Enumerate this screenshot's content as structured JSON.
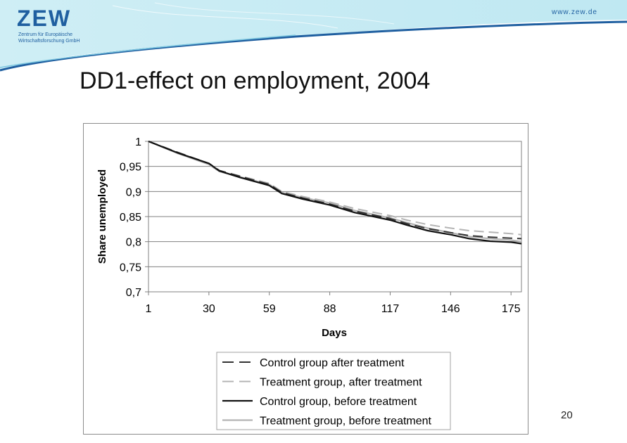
{
  "header": {
    "logo": "ZEW",
    "logo_subtitle_line1": "Zentrum für Europäische",
    "logo_subtitle_line2": "Wirtschaftsforschung GmbH",
    "url": "www.zew.de"
  },
  "slide": {
    "title": "DD1-effect on employment, 2004",
    "page_number": "20"
  },
  "colors": {
    "brand_blue": "#1f5fa0",
    "control_after": "#333333",
    "treatment_after": "#b4b4b4",
    "control_before": "#111111",
    "treatment_before": "#b4b4b4"
  },
  "chart_data": {
    "type": "line",
    "title": "",
    "xlabel": "Days",
    "ylabel": "Share unemployed",
    "xlim": [
      1,
      180
    ],
    "ylim": [
      0.7,
      1
    ],
    "x_ticks": [
      1,
      30,
      59,
      88,
      117,
      146,
      175
    ],
    "y_ticks": [
      1,
      0.95,
      0.9,
      0.85,
      0.8,
      0.75,
      0.7
    ],
    "y_tick_labels": [
      "1",
      "0,95",
      "0,9",
      "0,85",
      "0,8",
      "0,75",
      "0,7"
    ],
    "grid": "horizontal",
    "legend_position": "bottom",
    "x": [
      1,
      15,
      30,
      35,
      45,
      59,
      65,
      75,
      88,
      100,
      117,
      125,
      135,
      146,
      155,
      165,
      175,
      180
    ],
    "series": [
      {
        "name": "Control group after treatment",
        "style": "dashed",
        "color": "#333333",
        "values": [
          1.0,
          0.978,
          0.956,
          0.942,
          0.93,
          0.914,
          0.898,
          0.887,
          0.875,
          0.861,
          0.846,
          0.836,
          0.826,
          0.818,
          0.812,
          0.809,
          0.807,
          0.806
        ]
      },
      {
        "name": "Treatment group, after treatment",
        "style": "dashed",
        "color": "#b4b4b4",
        "values": [
          1.0,
          0.978,
          0.955,
          0.941,
          0.931,
          0.916,
          0.9,
          0.89,
          0.879,
          0.866,
          0.852,
          0.843,
          0.834,
          0.827,
          0.822,
          0.819,
          0.816,
          0.814
        ]
      },
      {
        "name": "Control group, before treatment",
        "style": "solid",
        "color": "#111111",
        "values": [
          1.0,
          0.977,
          0.956,
          0.941,
          0.928,
          0.912,
          0.896,
          0.885,
          0.873,
          0.858,
          0.843,
          0.833,
          0.822,
          0.814,
          0.806,
          0.801,
          0.799,
          0.796
        ]
      },
      {
        "name": "Treatment group, before treatment",
        "style": "solid",
        "color": "#b4b4b4",
        "values": [
          1.0,
          0.976,
          0.954,
          0.94,
          0.929,
          0.914,
          0.898,
          0.888,
          0.877,
          0.862,
          0.847,
          0.838,
          0.827,
          0.818,
          0.81,
          0.806,
          0.803,
          0.8
        ]
      }
    ]
  }
}
